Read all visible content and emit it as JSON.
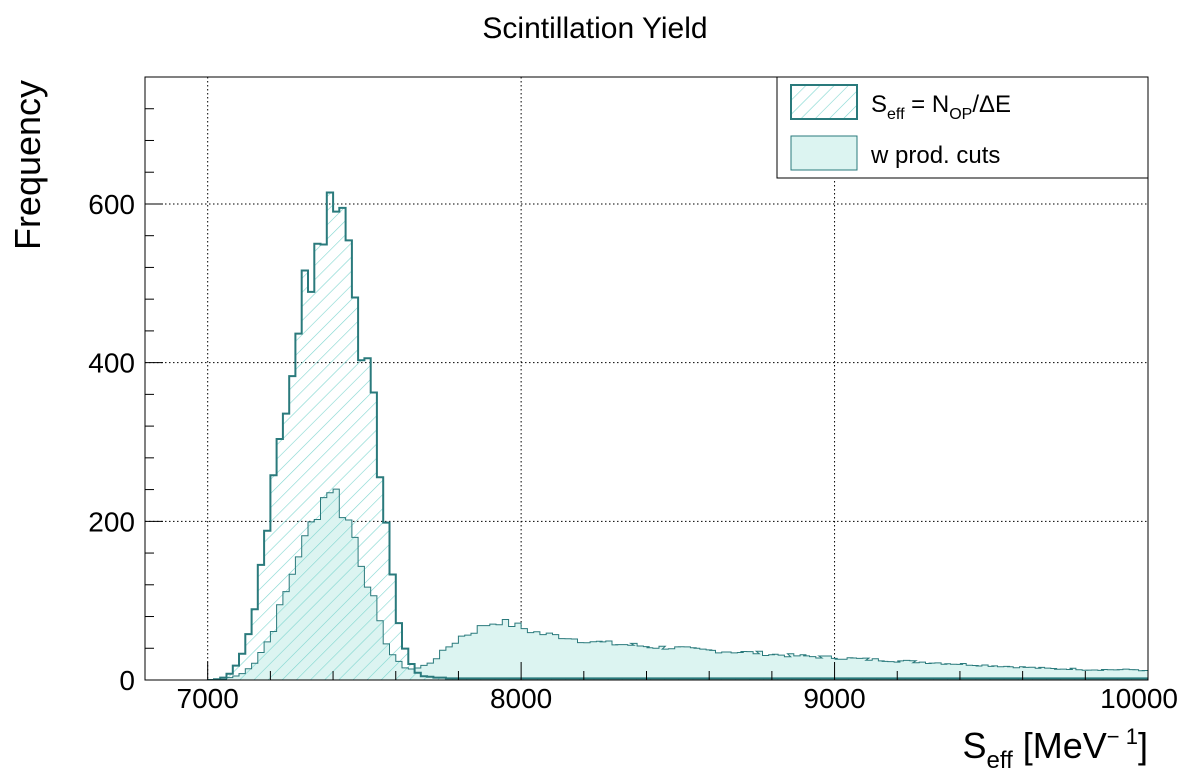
{
  "chart_data": {
    "type": "histogram",
    "title": "Scintillation Yield",
    "xlabel": "S_eff [MeV^-1]",
    "xlabel_parts": {
      "main": "S",
      "sub": "eff",
      "unit_open": " [MeV",
      "sup": "− 1",
      "unit_close": "]"
    },
    "ylabel": "Frequency",
    "xlim": [
      6800,
      10000
    ],
    "ylim": [
      0,
      760
    ],
    "x_ticks": [
      7000,
      8000,
      9000,
      10000
    ],
    "x_tick_labels": [
      "7000",
      "8000",
      "9000",
      "10000"
    ],
    "y_ticks": [
      0,
      200,
      400,
      600
    ],
    "y_tick_labels": [
      "0",
      "200",
      "400",
      "600"
    ],
    "grid": true,
    "legend_position": "top-right",
    "bin_width": 20,
    "series": [
      {
        "name": "S_eff = N_OP/ΔE",
        "style": "hatched",
        "color": "#2a7a7c",
        "fill": "#7ed6cf",
        "points": [
          [
            7000,
            0
          ],
          [
            7020,
            1
          ],
          [
            7040,
            3
          ],
          [
            7060,
            8
          ],
          [
            7080,
            18
          ],
          [
            7100,
            35
          ],
          [
            7120,
            60
          ],
          [
            7140,
            90
          ],
          [
            7160,
            145
          ],
          [
            7180,
            200
          ],
          [
            7200,
            245
          ],
          [
            7220,
            300
          ],
          [
            7240,
            340
          ],
          [
            7260,
            395
          ],
          [
            7280,
            420
          ],
          [
            7300,
            505
          ],
          [
            7320,
            520
          ],
          [
            7340,
            550
          ],
          [
            7360,
            570
          ],
          [
            7380,
            600
          ],
          [
            7400,
            620
          ],
          [
            7420,
            590
          ],
          [
            7440,
            555
          ],
          [
            7460,
            505
          ],
          [
            7480,
            430
          ],
          [
            7500,
            382
          ],
          [
            7520,
            340
          ],
          [
            7540,
            270
          ],
          [
            7560,
            200
          ],
          [
            7580,
            125
          ],
          [
            7600,
            75
          ],
          [
            7620,
            40
          ],
          [
            7640,
            20
          ],
          [
            7660,
            9
          ],
          [
            7680,
            5
          ],
          [
            7700,
            4
          ],
          [
            7720,
            3
          ],
          [
            7740,
            3
          ],
          [
            7760,
            2
          ],
          [
            7780,
            2
          ],
          [
            7800,
            2
          ],
          [
            7900,
            2
          ],
          [
            8000,
            2
          ],
          [
            8200,
            2
          ],
          [
            8400,
            2
          ],
          [
            8600,
            2
          ],
          [
            8800,
            2
          ],
          [
            9000,
            2
          ],
          [
            9200,
            2
          ],
          [
            9400,
            2
          ],
          [
            9600,
            2
          ],
          [
            9800,
            2
          ],
          [
            9980,
            2
          ]
        ]
      },
      {
        "name": "w prod. cuts",
        "style": "filled",
        "color": "#2a7a7c",
        "fill": "#dcf4f1",
        "points": [
          [
            7000,
            0
          ],
          [
            7040,
            1
          ],
          [
            7060,
            3
          ],
          [
            7080,
            5
          ],
          [
            7100,
            8
          ],
          [
            7120,
            15
          ],
          [
            7140,
            22
          ],
          [
            7160,
            35
          ],
          [
            7180,
            48
          ],
          [
            7200,
            65
          ],
          [
            7220,
            90
          ],
          [
            7240,
            110
          ],
          [
            7260,
            135
          ],
          [
            7280,
            160
          ],
          [
            7300,
            175
          ],
          [
            7320,
            195
          ],
          [
            7340,
            215
          ],
          [
            7360,
            230
          ],
          [
            7380,
            245
          ],
          [
            7400,
            235
          ],
          [
            7420,
            215
          ],
          [
            7440,
            200
          ],
          [
            7460,
            180
          ],
          [
            7480,
            150
          ],
          [
            7500,
            125
          ],
          [
            7520,
            100
          ],
          [
            7540,
            70
          ],
          [
            7560,
            48
          ],
          [
            7580,
            32
          ],
          [
            7600,
            22
          ],
          [
            7620,
            16
          ],
          [
            7640,
            14
          ],
          [
            7660,
            15
          ],
          [
            7680,
            18
          ],
          [
            7700,
            22
          ],
          [
            7720,
            28
          ],
          [
            7740,
            35
          ],
          [
            7760,
            42
          ],
          [
            7780,
            48
          ],
          [
            7800,
            55
          ],
          [
            7820,
            58
          ],
          [
            7840,
            62
          ],
          [
            7860,
            66
          ],
          [
            7880,
            70
          ],
          [
            7900,
            72
          ],
          [
            7920,
            74
          ],
          [
            7940,
            72
          ],
          [
            7960,
            70
          ],
          [
            7980,
            68
          ],
          [
            8000,
            65
          ],
          [
            8020,
            62
          ],
          [
            8040,
            60
          ],
          [
            8060,
            58
          ],
          [
            8080,
            57
          ],
          [
            8100,
            56
          ],
          [
            8120,
            55
          ],
          [
            8140,
            54
          ],
          [
            8160,
            52
          ],
          [
            8180,
            50
          ],
          [
            8200,
            50
          ],
          [
            8250,
            47
          ],
          [
            8300,
            45
          ],
          [
            8350,
            44
          ],
          [
            8400,
            42
          ],
          [
            8450,
            41
          ],
          [
            8500,
            40
          ],
          [
            8550,
            38
          ],
          [
            8600,
            37
          ],
          [
            8650,
            36
          ],
          [
            8700,
            35
          ],
          [
            8750,
            34
          ],
          [
            8800,
            32
          ],
          [
            8850,
            31
          ],
          [
            8900,
            30
          ],
          [
            8950,
            29
          ],
          [
            9000,
            28
          ],
          [
            9050,
            27
          ],
          [
            9100,
            26
          ],
          [
            9150,
            25
          ],
          [
            9200,
            24
          ],
          [
            9250,
            23
          ],
          [
            9300,
            22
          ],
          [
            9350,
            21
          ],
          [
            9400,
            20
          ],
          [
            9450,
            19
          ],
          [
            9500,
            18
          ],
          [
            9550,
            17
          ],
          [
            9600,
            16
          ],
          [
            9650,
            15
          ],
          [
            9700,
            14
          ],
          [
            9750,
            14
          ],
          [
            9800,
            13
          ],
          [
            9850,
            13
          ],
          [
            9900,
            13
          ],
          [
            9950,
            13
          ],
          [
            9980,
            12
          ]
        ]
      }
    ]
  }
}
